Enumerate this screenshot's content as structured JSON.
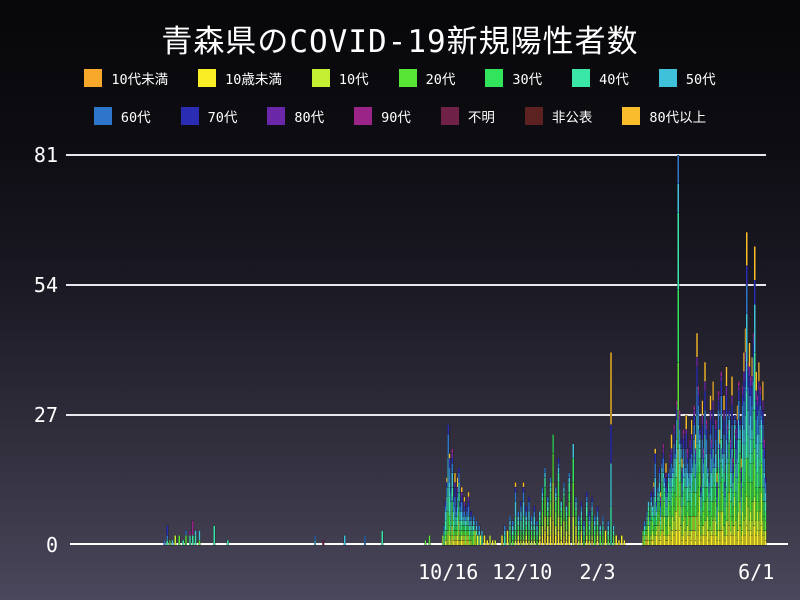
{
  "chart_data": {
    "type": "bar",
    "stacked": true,
    "title": "青森県のCOVID-19新規陽性者数",
    "legend_position": "top",
    "grid": true,
    "groups": [
      {
        "label": "10代未満",
        "color": "#F7A82B"
      },
      {
        "label": "10歳未満",
        "color": "#F9ED26"
      },
      {
        "label": "10代",
        "color": "#C3EE32"
      },
      {
        "label": "20代",
        "color": "#58E536"
      },
      {
        "label": "30代",
        "color": "#32E35C"
      },
      {
        "label": "40代",
        "color": "#3BE7A6"
      },
      {
        "label": "50代",
        "color": "#3FC1D9"
      },
      {
        "label": "60代",
        "color": "#2E75CC"
      },
      {
        "label": "70代",
        "color": "#2B2CB4"
      },
      {
        "label": "80代",
        "color": "#6A28A9"
      },
      {
        "label": "90代",
        "color": "#9A2488"
      },
      {
        "label": "不明",
        "color": "#6F2148"
      },
      {
        "label": "非公表",
        "color": "#5C2121"
      },
      {
        "label": "80代以上",
        "color": "#F9BC2B"
      }
    ],
    "legend_rows": [
      [
        0,
        1,
        2,
        3,
        4,
        5,
        6
      ],
      [
        7,
        8,
        9,
        10,
        11,
        12,
        13
      ]
    ],
    "ylim": [
      0,
      81
    ],
    "yticks": [
      0,
      27,
      54,
      81
    ],
    "xticks": [
      {
        "label": "10/16",
        "day": 285
      },
      {
        "label": "12/10",
        "day": 340
      },
      {
        "label": "2/3",
        "day": 396
      },
      {
        "label": "6/1",
        "day": 514
      }
    ],
    "x_unit": "day index along the date axis (approx. Jan 2020 through Jun 2021)",
    "bar_format": "[day, total, profileKey] for mixed stacks, or [day, [[groupIndex, value], ...]] bottom-to-top explicit stacks",
    "profiles": {
      "y": [
        [
          1,
          0.16
        ],
        [
          2,
          0.22
        ],
        [
          3,
          0.22
        ],
        [
          4,
          0.14
        ],
        [
          5,
          0.1
        ],
        [
          6,
          0.08
        ],
        [
          7,
          0.05
        ],
        [
          8,
          0.03
        ]
      ],
      "m": [
        [
          1,
          0.09
        ],
        [
          2,
          0.12
        ],
        [
          3,
          0.15
        ],
        [
          4,
          0.12
        ],
        [
          5,
          0.14
        ],
        [
          6,
          0.13
        ],
        [
          7,
          0.12
        ],
        [
          8,
          0.07
        ],
        [
          9,
          0.03
        ],
        [
          10,
          0.03
        ]
      ],
      "e": [
        [
          1,
          0.05
        ],
        [
          2,
          0.08
        ],
        [
          3,
          0.11
        ],
        [
          4,
          0.09
        ],
        [
          5,
          0.13
        ],
        [
          6,
          0.14
        ],
        [
          7,
          0.14
        ],
        [
          8,
          0.1
        ],
        [
          9,
          0.05
        ],
        [
          13,
          0.11
        ]
      ],
      "c": [
        [
          2,
          0.08
        ],
        [
          3,
          0.1
        ],
        [
          4,
          0.1
        ],
        [
          5,
          0.2
        ],
        [
          6,
          0.24
        ],
        [
          7,
          0.16
        ],
        [
          8,
          0.08
        ],
        [
          13,
          0.04
        ]
      ]
    },
    "bars": [
      [
        74,
        [
          [
            7,
            1
          ]
        ]
      ],
      [
        76,
        [
          [
            5,
            1
          ],
          [
            7,
            1
          ],
          [
            8,
            2
          ]
        ]
      ],
      [
        78,
        [
          [
            3,
            1
          ]
        ]
      ],
      [
        80,
        [
          [
            6,
            1
          ]
        ]
      ],
      [
        82,
        [
          [
            2,
            2
          ]
        ]
      ],
      [
        85,
        [
          [
            3,
            2
          ]
        ]
      ],
      [
        88,
        [
          [
            5,
            1
          ]
        ]
      ],
      [
        90,
        [
          [
            3,
            2
          ],
          [
            7,
            1
          ]
        ]
      ],
      [
        93,
        [
          [
            5,
            2
          ],
          [
            10,
            1
          ]
        ]
      ],
      [
        95,
        [
          [
            5,
            2
          ],
          [
            10,
            3
          ]
        ]
      ],
      [
        97,
        [
          [
            5,
            2
          ],
          [
            6,
            1
          ]
        ]
      ],
      [
        100,
        [
          [
            3,
            1
          ],
          [
            6,
            2
          ]
        ]
      ],
      [
        111,
        [
          [
            5,
            4
          ]
        ]
      ],
      [
        121,
        [
          [
            5,
            1
          ]
        ]
      ],
      [
        186,
        [
          [
            6,
            1
          ],
          [
            7,
            1
          ]
        ]
      ],
      [
        192,
        [
          [
            11,
            1
          ]
        ]
      ],
      [
        208,
        [
          [
            6,
            2
          ]
        ]
      ],
      [
        223,
        [
          [
            7,
            2
          ]
        ]
      ],
      [
        236,
        [
          [
            5,
            3
          ]
        ]
      ],
      [
        268,
        [
          [
            3,
            1
          ]
        ]
      ],
      [
        271,
        [
          [
            3,
            2
          ]
        ]
      ],
      [
        281,
        2,
        "c"
      ],
      [
        282,
        4,
        "c"
      ],
      [
        283,
        9,
        "c"
      ],
      [
        284,
        14,
        "c"
      ],
      [
        285,
        [
          [
            2,
            3
          ],
          [
            3,
            4
          ],
          [
            5,
            5
          ],
          [
            6,
            6
          ],
          [
            7,
            5
          ],
          [
            8,
            2
          ]
        ]
      ],
      [
        286,
        19,
        "c"
      ],
      [
        287,
        12,
        "c"
      ],
      [
        288,
        20,
        "m"
      ],
      [
        289,
        10,
        "c"
      ],
      [
        290,
        15,
        "e"
      ],
      [
        291,
        8,
        "m"
      ],
      [
        292,
        14,
        "e"
      ],
      [
        293,
        16,
        "m"
      ],
      [
        294,
        9,
        "c"
      ],
      [
        295,
        12,
        "e"
      ],
      [
        296,
        7,
        "m"
      ],
      [
        297,
        10,
        "e"
      ],
      [
        298,
        6,
        "c"
      ],
      [
        299,
        8,
        "m"
      ],
      [
        300,
        11,
        "e"
      ],
      [
        301,
        5,
        "m"
      ],
      [
        302,
        7,
        "c"
      ],
      [
        303,
        4,
        "m"
      ],
      [
        304,
        6,
        "c"
      ],
      [
        305,
        3,
        "m"
      ],
      [
        306,
        5,
        "c"
      ],
      [
        307,
        2,
        "m"
      ],
      [
        308,
        4,
        "c"
      ],
      [
        309,
        2,
        "m"
      ],
      [
        310,
        3,
        "c"
      ],
      [
        312,
        2,
        "m"
      ],
      [
        314,
        1,
        "y"
      ],
      [
        316,
        2,
        "c"
      ],
      [
        318,
        1,
        "m"
      ],
      [
        320,
        1,
        "c"
      ],
      [
        325,
        2,
        "m"
      ],
      [
        327,
        4,
        "c"
      ],
      [
        329,
        3,
        "m"
      ],
      [
        331,
        6,
        "c"
      ],
      [
        333,
        5,
        "m"
      ],
      [
        335,
        13,
        "c"
      ],
      [
        337,
        7,
        "m"
      ],
      [
        339,
        9,
        "c"
      ],
      [
        341,
        13,
        "c"
      ],
      [
        343,
        8,
        "m"
      ],
      [
        345,
        10,
        "c"
      ],
      [
        347,
        6,
        "m"
      ],
      [
        349,
        8,
        "c"
      ],
      [
        351,
        5,
        "m"
      ],
      [
        353,
        7,
        "y"
      ],
      [
        355,
        12,
        "y"
      ],
      [
        357,
        16,
        "y"
      ],
      [
        359,
        10,
        "y"
      ],
      [
        361,
        14,
        "y"
      ],
      [
        363,
        [
          [
            1,
            5
          ],
          [
            2,
            8
          ],
          [
            3,
            6
          ],
          [
            4,
            4
          ]
        ]
      ],
      [
        365,
        12,
        "y"
      ],
      [
        367,
        18,
        "y"
      ],
      [
        369,
        9,
        "y"
      ],
      [
        371,
        13,
        "y"
      ],
      [
        373,
        8,
        "y"
      ],
      [
        375,
        15,
        "y"
      ],
      [
        378,
        [
          [
            2,
            6
          ],
          [
            3,
            7
          ],
          [
            4,
            5
          ],
          [
            6,
            3
          ]
        ]
      ],
      [
        380,
        10,
        "y"
      ],
      [
        382,
        6,
        "m"
      ],
      [
        384,
        9,
        "m"
      ],
      [
        386,
        5,
        "m"
      ],
      [
        388,
        11,
        "m"
      ],
      [
        390,
        7,
        "c"
      ],
      [
        392,
        10,
        "m"
      ],
      [
        394,
        6,
        "c"
      ],
      [
        396,
        8,
        "m"
      ],
      [
        398,
        4,
        "m"
      ],
      [
        400,
        6,
        "c"
      ],
      [
        402,
        3,
        "m"
      ],
      [
        404,
        5,
        "m"
      ],
      [
        406,
        [
          [
            5,
            8
          ],
          [
            6,
            9
          ],
          [
            8,
            8
          ],
          [
            13,
            15
          ]
        ]
      ],
      [
        408,
        4,
        "m"
      ],
      [
        410,
        2,
        "m"
      ],
      [
        412,
        1,
        "y"
      ],
      [
        414,
        2,
        "y"
      ],
      [
        416,
        1,
        "m"
      ],
      [
        430,
        3,
        "y"
      ],
      [
        431,
        5,
        "m"
      ],
      [
        432,
        4,
        "y"
      ],
      [
        433,
        7,
        "m"
      ],
      [
        434,
        9,
        "y"
      ],
      [
        435,
        6,
        "c"
      ],
      [
        436,
        11,
        "m"
      ],
      [
        437,
        8,
        "y"
      ],
      [
        438,
        13,
        "e"
      ],
      [
        439,
        20,
        "c"
      ],
      [
        440,
        9,
        "m"
      ],
      [
        441,
        12,
        "y"
      ],
      [
        442,
        16,
        "m"
      ],
      [
        443,
        11,
        "e"
      ],
      [
        444,
        18,
        "y"
      ],
      [
        445,
        21,
        "m"
      ],
      [
        446,
        14,
        "y"
      ],
      [
        447,
        17,
        "e"
      ],
      [
        448,
        12,
        "m"
      ],
      [
        449,
        15,
        "y"
      ],
      [
        450,
        19,
        "m"
      ],
      [
        451,
        23,
        "e"
      ],
      [
        452,
        16,
        "y"
      ],
      [
        453,
        25,
        "m"
      ],
      [
        454,
        20,
        "y"
      ],
      [
        455,
        30,
        "m"
      ],
      [
        456,
        [
          [
            1,
            8
          ],
          [
            2,
            12
          ],
          [
            3,
            18
          ],
          [
            4,
            15
          ],
          [
            5,
            16
          ],
          [
            6,
            6
          ],
          [
            7,
            6
          ]
        ]
      ],
      [
        457,
        28,
        "m"
      ],
      [
        458,
        22,
        "y"
      ],
      [
        459,
        18,
        "e"
      ],
      [
        460,
        24,
        "m"
      ],
      [
        461,
        16,
        "y"
      ],
      [
        462,
        27,
        "e"
      ],
      [
        463,
        20,
        "m"
      ],
      [
        464,
        15,
        "y"
      ],
      [
        465,
        22,
        "m"
      ],
      [
        466,
        26,
        "e"
      ],
      [
        467,
        18,
        "y"
      ],
      [
        468,
        29,
        "m"
      ],
      [
        469,
        23,
        "e"
      ],
      [
        470,
        44,
        "e"
      ],
      [
        471,
        33,
        "m"
      ],
      [
        472,
        24,
        "y"
      ],
      [
        473,
        12,
        "m"
      ],
      [
        474,
        30,
        "e"
      ],
      [
        475,
        20,
        "m"
      ],
      [
        476,
        38,
        "e"
      ],
      [
        477,
        26,
        "m"
      ],
      [
        478,
        16,
        "y"
      ],
      [
        479,
        14,
        "m"
      ],
      [
        480,
        31,
        "e"
      ],
      [
        481,
        22,
        "m"
      ],
      [
        482,
        34,
        "e"
      ],
      [
        483,
        18,
        "y"
      ],
      [
        484,
        26,
        "m"
      ],
      [
        485,
        15,
        "e"
      ],
      [
        486,
        32,
        "m"
      ],
      [
        487,
        24,
        "e"
      ],
      [
        488,
        36,
        "m"
      ],
      [
        489,
        20,
        "y"
      ],
      [
        490,
        31,
        "e"
      ],
      [
        491,
        13,
        "m"
      ],
      [
        492,
        37,
        "e"
      ],
      [
        493,
        25,
        "m"
      ],
      [
        494,
        28,
        "y"
      ],
      [
        495,
        22,
        "m"
      ],
      [
        496,
        35,
        "e"
      ],
      [
        497,
        18,
        "m"
      ],
      [
        498,
        27,
        "y"
      ],
      [
        499,
        24,
        "m"
      ],
      [
        500,
        29,
        "e"
      ],
      [
        501,
        34,
        "m"
      ],
      [
        502,
        26,
        "y"
      ],
      [
        503,
        18,
        "e"
      ],
      [
        504,
        33,
        "m"
      ],
      [
        505,
        40,
        "e"
      ],
      [
        506,
        45,
        "e"
      ],
      [
        507,
        [
          [
            1,
            4
          ],
          [
            2,
            6
          ],
          [
            3,
            8
          ],
          [
            5,
            14
          ],
          [
            6,
            16
          ],
          [
            7,
            6
          ],
          [
            8,
            4
          ],
          [
            13,
            7
          ]
        ]
      ],
      [
        508,
        38,
        "m"
      ],
      [
        509,
        42,
        "e"
      ],
      [
        510,
        35,
        "m"
      ],
      [
        511,
        39,
        "e"
      ],
      [
        512,
        44,
        "m"
      ],
      [
        513,
        [
          [
            1,
            4
          ],
          [
            2,
            6
          ],
          [
            3,
            10
          ],
          [
            4,
            8
          ],
          [
            5,
            12
          ],
          [
            6,
            10
          ],
          [
            8,
            5
          ],
          [
            13,
            7
          ]
        ]
      ],
      [
        514,
        36,
        "e"
      ],
      [
        515,
        31,
        "m"
      ],
      [
        516,
        38,
        "e"
      ],
      [
        517,
        33,
        "m"
      ],
      [
        518,
        28,
        "y"
      ],
      [
        519,
        34,
        "e"
      ],
      [
        520,
        22,
        "m"
      ],
      [
        521,
        14,
        "m"
      ]
    ],
    "annotations": {
      "peak_value": 81,
      "gridline_color": "#E8E8EC",
      "baseline_color": "#FFFFFF",
      "text_color": "#FFFFFF"
    }
  }
}
